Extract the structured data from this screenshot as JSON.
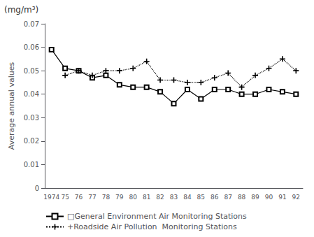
{
  "chart_data": {
    "type": "line",
    "ylabel": "Average annual values",
    "annotations": [
      {
        "text": "(mg/m³)"
      }
    ],
    "categories": [
      "1974",
      "75",
      "76",
      "77",
      "78",
      "79",
      "80",
      "81",
      "82",
      "83",
      "84",
      "85",
      "86",
      "87",
      "88",
      "89",
      "90",
      "91",
      "92"
    ],
    "series": [
      {
        "name": "□General Environment Air Monitoring Stations",
        "color": "#000000",
        "marker": "square",
        "line_style": "solid",
        "values": [
          0.059,
          0.051,
          0.05,
          0.047,
          0.048,
          0.044,
          0.043,
          0.043,
          0.041,
          0.036,
          0.042,
          0.038,
          0.042,
          0.042,
          0.04,
          0.04,
          0.042,
          0.041,
          0.04
        ]
      },
      {
        "name": "+Roadside Air Pollution  Monitoring Stations",
        "color": "#000000",
        "marker": "plus",
        "line_style": "dotted",
        "values": [
          null,
          0.048,
          0.05,
          0.048,
          0.05,
          0.05,
          0.051,
          0.054,
          0.046,
          0.046,
          0.045,
          0.045,
          0.047,
          0.049,
          0.043,
          0.048,
          0.051,
          0.055,
          0.05
        ]
      }
    ],
    "ylim": [
      0,
      0.07
    ],
    "yticks": [
      0,
      0.01,
      0.02,
      0.03,
      0.04,
      0.05,
      0.06,
      0.07
    ],
    "grid": false,
    "legend": "lower left"
  }
}
